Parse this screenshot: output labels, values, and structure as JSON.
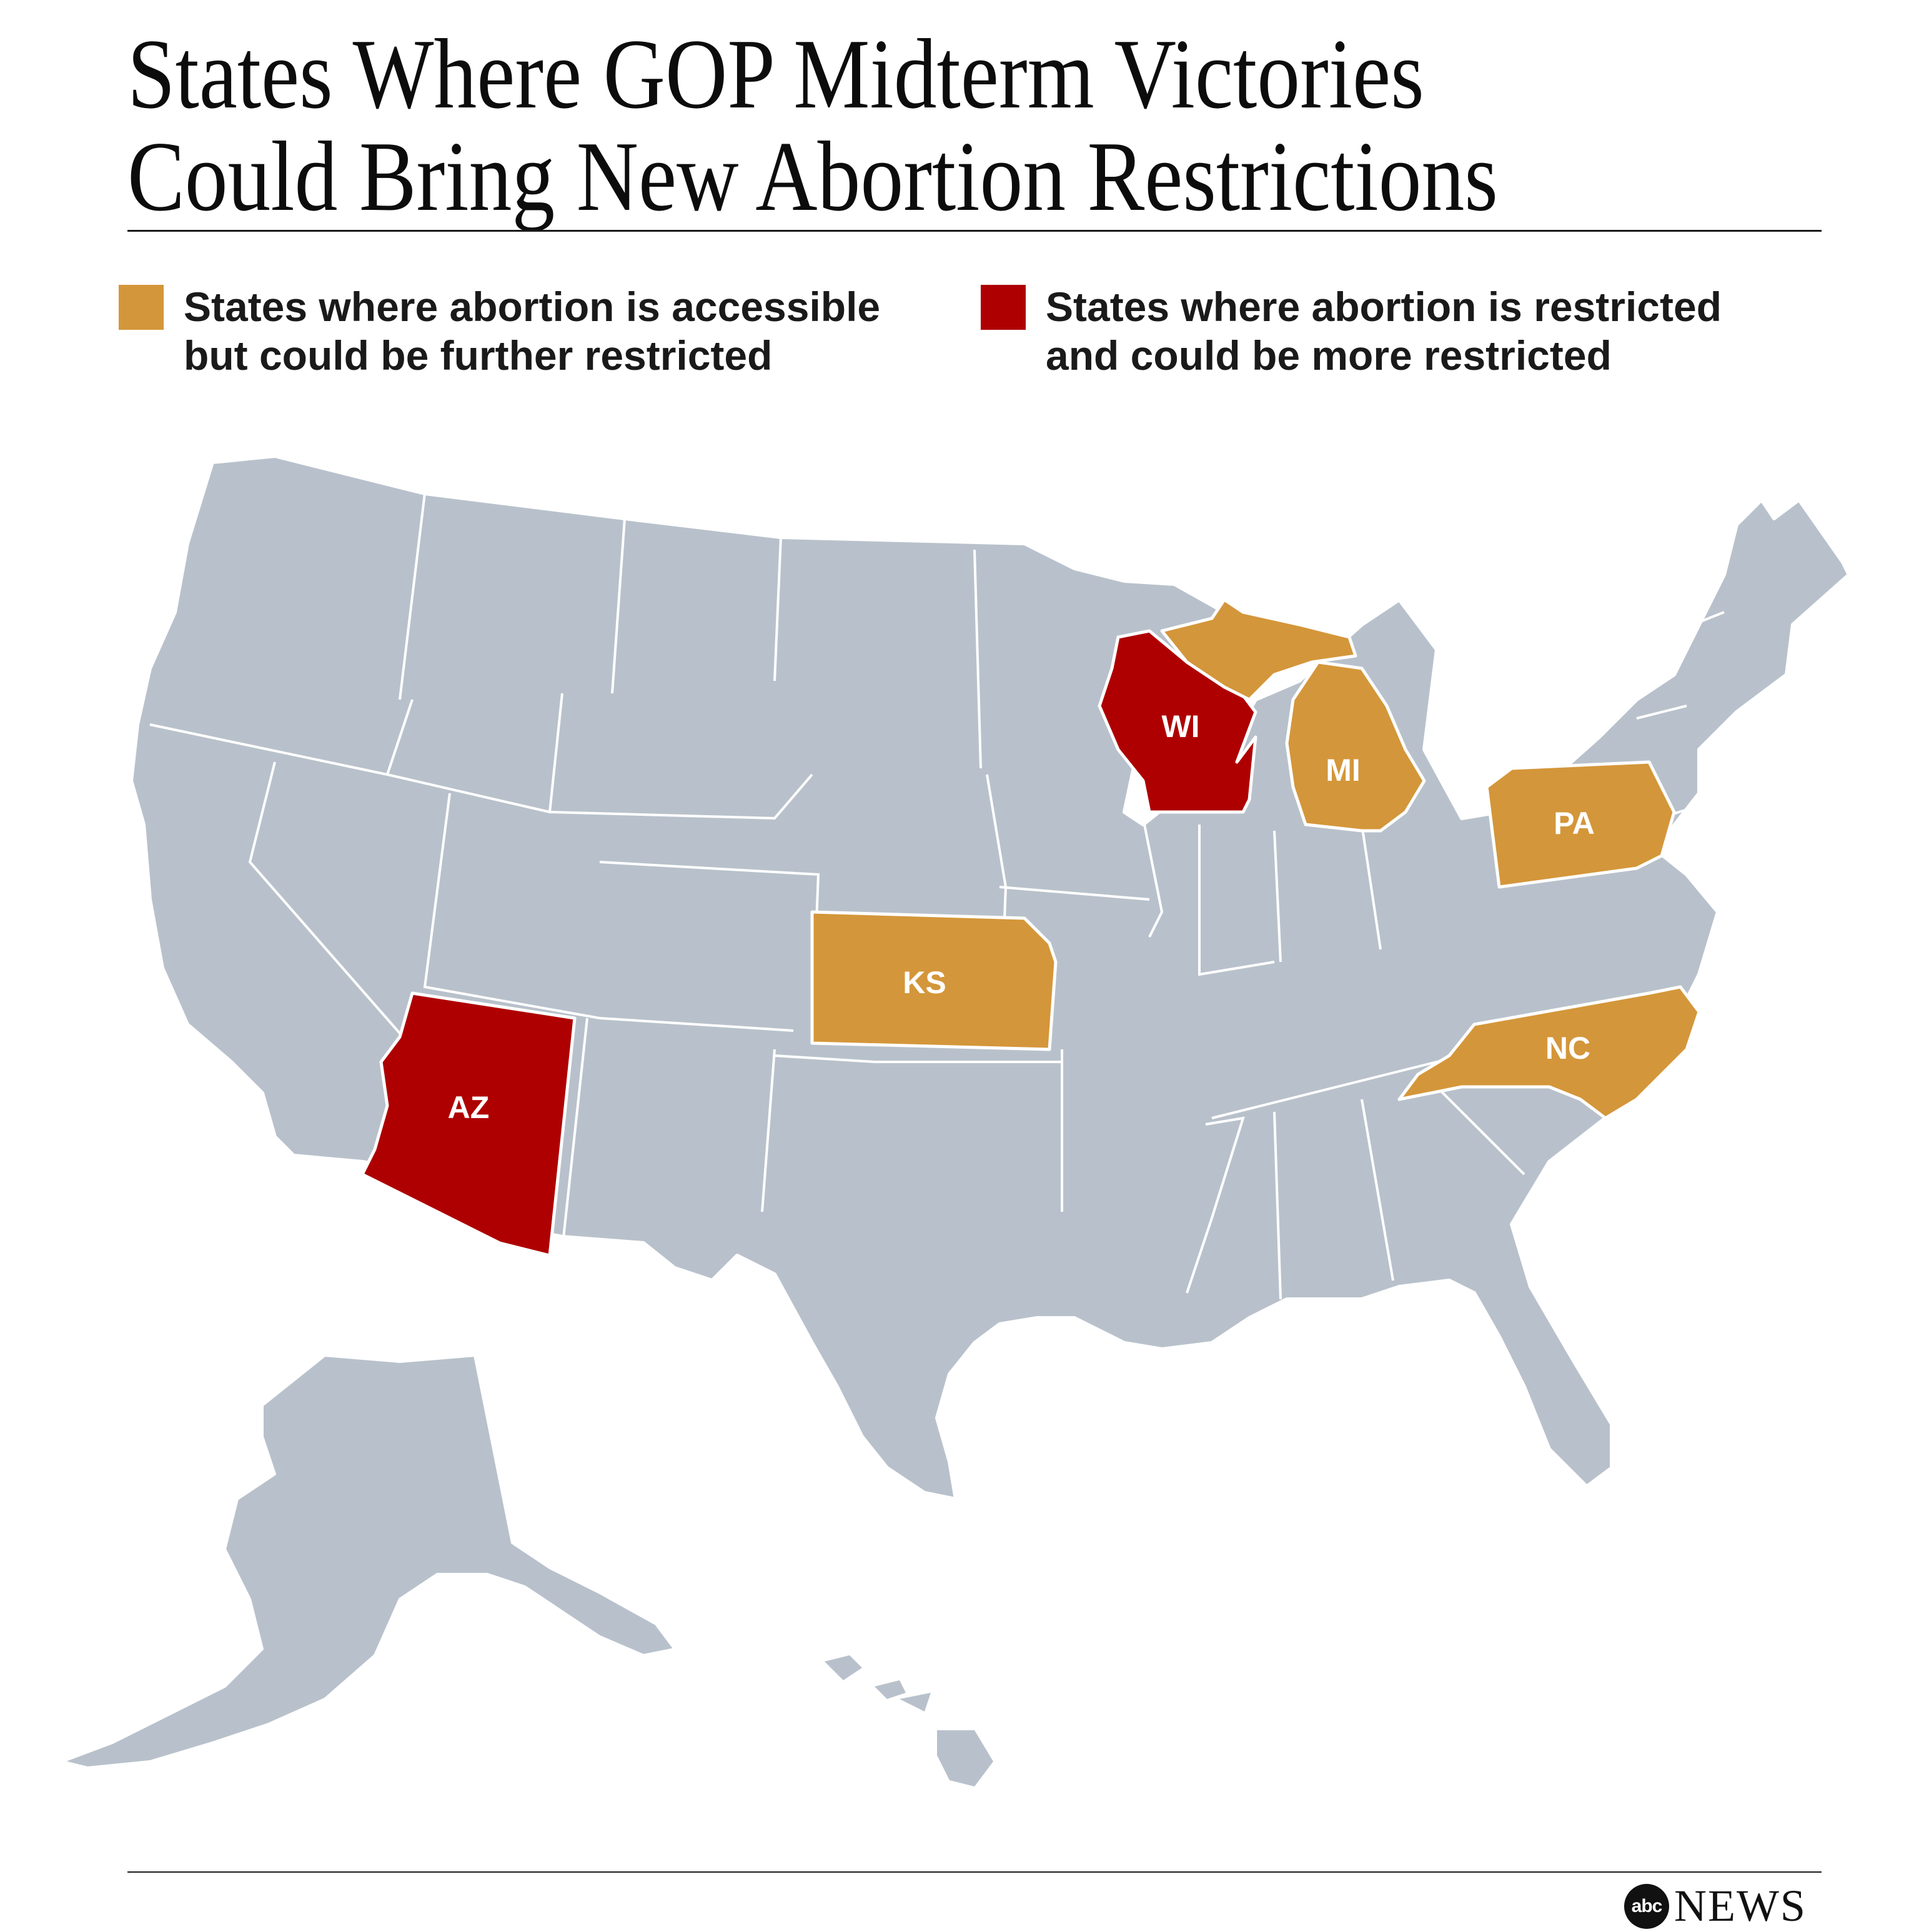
{
  "title": {
    "line1": "States Where GOP Midterm Victories",
    "line2": "Could Bring New Abortion Restrictions"
  },
  "legend": [
    {
      "label": "States where abortion is accessible\nbut could be further restricted",
      "color": "#d4963a"
    },
    {
      "label": "States where abortion is restricted\nand could be more restricted",
      "color": "#ae0001"
    }
  ],
  "map": {
    "base_color": "#b8c1cb",
    "border_color": "#ffffff",
    "highlighted_states": [
      {
        "code": "WI",
        "category": "restricted",
        "color": "#ae0001"
      },
      {
        "code": "AZ",
        "category": "restricted",
        "color": "#ae0001"
      },
      {
        "code": "MI",
        "category": "accessible",
        "color": "#d4963a"
      },
      {
        "code": "PA",
        "category": "accessible",
        "color": "#d4963a"
      },
      {
        "code": "KS",
        "category": "accessible",
        "color": "#d4963a"
      },
      {
        "code": "NC",
        "category": "accessible",
        "color": "#d4963a"
      }
    ]
  },
  "footer": {
    "logo_ball": "abc",
    "logo_text": "NEWS"
  }
}
